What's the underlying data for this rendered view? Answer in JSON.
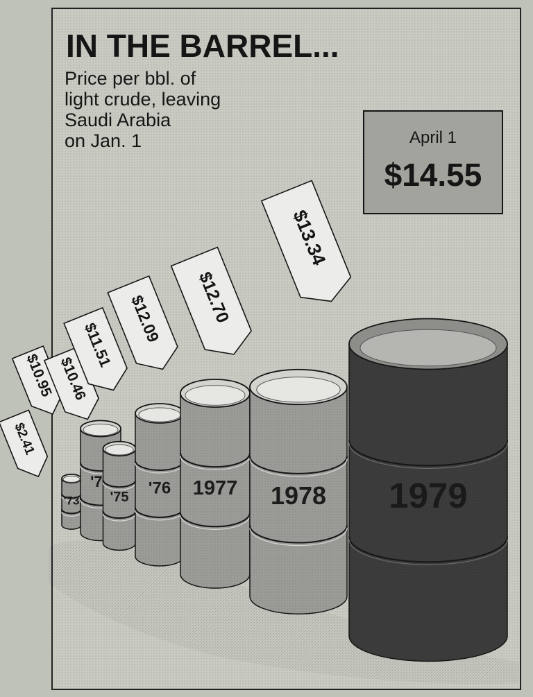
{
  "chart_data": {
    "type": "bar",
    "title": "IN THE BARREL...",
    "subtitle_lines": [
      "Price per bbl. of",
      "light crude, leaving",
      "Saudi Arabia",
      "on Jan. 1"
    ],
    "categories": [
      "'73",
      "'74",
      "'75",
      "'76",
      "1977",
      "1978",
      "1979"
    ],
    "values": [
      2.41,
      10.95,
      10.46,
      11.51,
      12.09,
      12.7,
      13.34
    ],
    "value_labels": [
      "$2.41",
      "$10.95",
      "$10.46",
      "$11.51",
      "$12.09",
      "$12.70",
      "$13.34"
    ],
    "inset": {
      "label": "April 1",
      "value_text": "$14.55",
      "value": 14.55
    },
    "colors": {
      "page": "#bfc2b9",
      "panel": "#c9cac2",
      "ink": "#151515",
      "barrel_light": "#9b9b97",
      "barrel_dark": "#3c3c3c",
      "tag": "#ececea",
      "inset_box": "#a2a39d"
    }
  }
}
